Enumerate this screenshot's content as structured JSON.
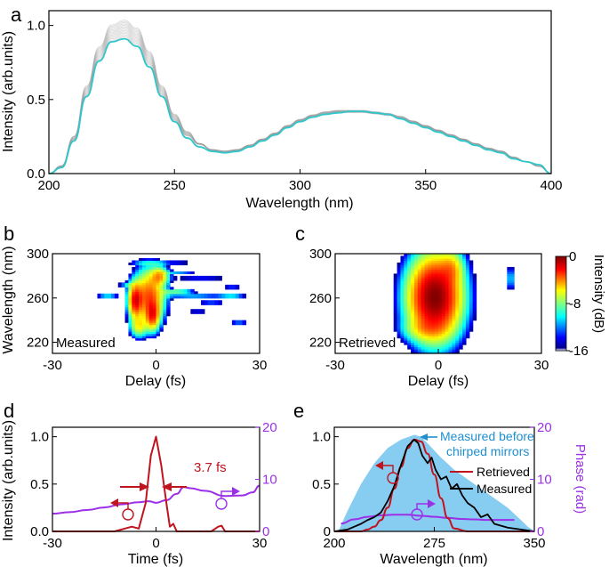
{
  "panels": {
    "a": {
      "letter": "a"
    },
    "b": {
      "letter": "b"
    },
    "c": {
      "letter": "c"
    },
    "d": {
      "letter": "d"
    },
    "e": {
      "letter": "e"
    }
  },
  "chart_data": [
    {
      "id": "a",
      "type": "line",
      "title": "",
      "xlabel": "Wavelength (nm)",
      "ylabel": "Intensity (arb.units)",
      "xlim": [
        200,
        400
      ],
      "ylim": [
        0,
        1.1
      ],
      "xticks": [
        200,
        250,
        300,
        350,
        400
      ],
      "yticks": [
        0.0,
        0.5,
        1.0
      ],
      "ytick_labels": [
        "0.0",
        "0.5",
        "1.0"
      ],
      "series": [
        {
          "name": "individual spectra",
          "color": "#9a9a9a",
          "x": [
            200,
            205,
            210,
            215,
            220,
            225,
            230,
            235,
            240,
            245,
            250,
            255,
            260,
            265,
            270,
            275,
            280,
            285,
            290,
            295,
            300,
            305,
            310,
            315,
            320,
            325,
            330,
            335,
            340,
            345,
            350,
            355,
            360,
            365,
            370,
            375,
            380,
            385,
            390,
            395,
            400
          ],
          "values": [
            0.0,
            0.05,
            0.24,
            0.56,
            0.81,
            0.95,
            0.98,
            0.93,
            0.78,
            0.56,
            0.38,
            0.27,
            0.2,
            0.16,
            0.15,
            0.16,
            0.19,
            0.23,
            0.27,
            0.32,
            0.36,
            0.39,
            0.41,
            0.42,
            0.42,
            0.42,
            0.41,
            0.4,
            0.38,
            0.35,
            0.32,
            0.29,
            0.26,
            0.23,
            0.2,
            0.17,
            0.15,
            0.11,
            0.08,
            0.05,
            0.0
          ]
        },
        {
          "name": "mean spectrum",
          "color": "#2ec7cc",
          "x": [
            200,
            205,
            210,
            215,
            220,
            225,
            230,
            235,
            240,
            245,
            250,
            255,
            260,
            265,
            270,
            275,
            280,
            285,
            290,
            295,
            300,
            305,
            310,
            315,
            320,
            325,
            330,
            335,
            340,
            345,
            350,
            355,
            360,
            365,
            370,
            375,
            380,
            385,
            390,
            395,
            400
          ],
          "values": [
            0.0,
            0.04,
            0.22,
            0.52,
            0.76,
            0.89,
            0.91,
            0.86,
            0.72,
            0.52,
            0.35,
            0.24,
            0.18,
            0.15,
            0.14,
            0.15,
            0.18,
            0.22,
            0.26,
            0.31,
            0.35,
            0.38,
            0.4,
            0.41,
            0.42,
            0.42,
            0.41,
            0.4,
            0.37,
            0.34,
            0.31,
            0.28,
            0.25,
            0.22,
            0.19,
            0.16,
            0.14,
            0.1,
            0.08,
            0.06,
            0.0
          ]
        }
      ]
    },
    {
      "id": "b",
      "type": "heatmap",
      "title": "",
      "annotation": "Measured",
      "xlabel": "Delay (fs)",
      "ylabel": "Wavelength (nm)",
      "xlim": [
        -30,
        30
      ],
      "ylim": [
        210,
        300
      ],
      "xticks": [
        -30,
        0,
        30
      ],
      "yticks": [
        220,
        260,
        300
      ],
      "blobs": [
        {
          "x": -2,
          "y": 262,
          "sx": 2.6,
          "sy": 14,
          "v": -3
        },
        {
          "x": -6,
          "y": 258,
          "sx": 1.2,
          "sy": 9,
          "v": -2
        },
        {
          "x": -1,
          "y": 245,
          "sx": 1.2,
          "sy": 8,
          "v": -3
        },
        {
          "x": -5,
          "y": 235,
          "sx": 1.5,
          "sy": 6,
          "v": -6
        },
        {
          "x": 1,
          "y": 280,
          "sx": 1.5,
          "sy": 5,
          "v": -5
        },
        {
          "x": -2,
          "y": 292,
          "sx": 4,
          "sy": 1.5,
          "v": -12
        },
        {
          "x": 6,
          "y": 266,
          "sx": 3,
          "sy": 1.4,
          "v": -8
        },
        {
          "x": 11,
          "y": 262,
          "sx": 6,
          "sy": 1.4,
          "v": -11
        },
        {
          "x": 13,
          "y": 278,
          "sx": 7,
          "sy": 1.2,
          "v": -13
        },
        {
          "x": 6,
          "y": 283,
          "sx": 4,
          "sy": 1.2,
          "v": -12
        },
        {
          "x": 22,
          "y": 262,
          "sx": 2.5,
          "sy": 1.2,
          "v": -10
        },
        {
          "x": 24,
          "y": 238,
          "sx": 2,
          "sy": 1.5,
          "v": -12
        },
        {
          "x": 7,
          "y": 292,
          "sx": 3,
          "sy": 1.2,
          "v": -14
        },
        {
          "x": 18,
          "y": 294,
          "sx": 2,
          "sy": 1.2,
          "v": -15
        },
        {
          "x": -14,
          "y": 262,
          "sx": 2,
          "sy": 1.4,
          "v": -10
        },
        {
          "x": -8,
          "y": 272,
          "sx": 2,
          "sy": 1.3,
          "v": -11
        },
        {
          "x": 16,
          "y": 256,
          "sx": 3,
          "sy": 1.2,
          "v": -12
        },
        {
          "x": 22,
          "y": 270,
          "sx": 2,
          "sy": 1.1,
          "v": -12
        },
        {
          "x": 12,
          "y": 248,
          "sx": 3,
          "sy": 1.1,
          "v": -13
        }
      ]
    },
    {
      "id": "c",
      "type": "heatmap",
      "title": "",
      "annotation": "Retrieved",
      "xlabel": "Delay (fs)",
      "ylabel": "",
      "xlim": [
        -30,
        30
      ],
      "ylim": [
        210,
        300
      ],
      "xticks": [
        -30,
        0,
        30
      ],
      "yticks": [
        220,
        260,
        300
      ],
      "blobs": [
        {
          "x": -1,
          "y": 261,
          "sx": 4.5,
          "sy": 22,
          "v": 0
        },
        {
          "x": 4,
          "y": 288,
          "sx": 2,
          "sy": 9,
          "v": -7
        },
        {
          "x": -4,
          "y": 232,
          "sx": 4,
          "sy": 6,
          "v": -9
        },
        {
          "x": 21,
          "y": 278,
          "sx": 0.9,
          "sy": 7,
          "v": -11
        }
      ],
      "colorbar": {
        "label": "Intensity (dB)",
        "ticks": [
          0,
          -8,
          -16
        ],
        "range": [
          -16,
          0
        ]
      }
    },
    {
      "id": "d",
      "type": "line",
      "title": "",
      "xlabel": "Time (fs)",
      "ylabel": "Intensity (arb.units)",
      "y2label": "Phase (rad)",
      "xlim": [
        -30,
        30
      ],
      "ylim": [
        0,
        1.1
      ],
      "y2lim": [
        0,
        20
      ],
      "xticks": [
        -30,
        0,
        30
      ],
      "yticks": [
        0.0,
        0.5,
        1.0
      ],
      "ytick_labels": [
        "0.0",
        "0.5",
        "1.0"
      ],
      "y2ticks": [
        0,
        10,
        20
      ],
      "annotations": [
        "3.7 fs"
      ],
      "series": [
        {
          "name": "intensity",
          "axis": "left",
          "color": "#c0141e",
          "x": [
            -30,
            -20,
            -12,
            -9,
            -7,
            -5,
            -3,
            -1.5,
            0,
            1.5,
            3,
            4,
            5,
            6,
            10,
            16,
            18,
            19,
            20,
            22,
            30
          ],
          "values": [
            0.0,
            0.0,
            0.0,
            0.03,
            0.05,
            0.03,
            0.3,
            0.8,
            1.0,
            0.7,
            0.3,
            0.05,
            0.08,
            0.0,
            0.0,
            0.0,
            0.05,
            0.06,
            0.0,
            0.0,
            0.0
          ]
        },
        {
          "name": "phase",
          "axis": "right",
          "color": "#9b30e8",
          "x": [
            -30,
            -25,
            -20,
            -15,
            -10,
            -5,
            -2,
            0,
            3,
            6,
            8,
            10,
            14,
            20,
            25,
            28,
            30
          ],
          "values": [
            3.4,
            3.7,
            4.1,
            4.6,
            5.2,
            5.6,
            5.8,
            5.5,
            6.0,
            7.2,
            8.5,
            8.3,
            7.8,
            6.8,
            6.9,
            7.5,
            8.8
          ]
        }
      ]
    },
    {
      "id": "e",
      "type": "line",
      "title": "",
      "xlabel": "Wavelength (nm)",
      "ylabel": "",
      "y2label": "Phase (rad)",
      "xlim": [
        200,
        350
      ],
      "ylim": [
        0,
        1.1
      ],
      "y2lim": [
        0,
        20
      ],
      "xticks": [
        200,
        275,
        350
      ],
      "yticks": [
        0.0,
        0.5,
        1.0
      ],
      "ytick_labels": [
        "0",
        "0.5",
        "1.0"
      ],
      "y2ticks": [
        0,
        10,
        20
      ],
      "annotations": [
        "Measured before",
        "chirped mirrors"
      ],
      "legend": [
        "Retrieved",
        "Measured"
      ],
      "series": [
        {
          "name": "Measured before chirped mirrors",
          "type": "area",
          "color": "#87cdf1",
          "x": [
            203,
            210,
            220,
            230,
            240,
            250,
            260,
            265,
            270,
            280,
            290,
            300,
            310,
            320,
            330,
            340,
            345,
            350
          ],
          "values": [
            0.0,
            0.22,
            0.5,
            0.72,
            0.88,
            0.97,
            1.02,
            1.0,
            0.93,
            0.78,
            0.65,
            0.55,
            0.45,
            0.35,
            0.25,
            0.12,
            0.05,
            0.0
          ]
        },
        {
          "name": "Retrieved",
          "color": "#c0141e",
          "x": [
            200,
            220,
            225,
            230,
            235,
            240,
            245,
            250,
            255,
            260,
            265,
            270,
            275,
            280,
            285,
            290,
            300,
            350
          ],
          "values": [
            0.0,
            0.0,
            0.02,
            0.05,
            0.12,
            0.25,
            0.45,
            0.68,
            0.88,
            0.97,
            0.95,
            0.82,
            0.6,
            0.35,
            0.14,
            0.03,
            0.0,
            0.0
          ]
        },
        {
          "name": "Measured",
          "color": "#000000",
          "x": [
            200,
            210,
            215,
            220,
            225,
            230,
            235,
            240,
            245,
            250,
            255,
            260,
            263,
            266,
            270,
            273,
            276,
            280,
            284,
            288,
            292,
            296,
            300,
            305,
            310,
            315,
            320,
            330,
            340,
            350
          ],
          "values": [
            0.0,
            0.02,
            0.05,
            0.08,
            0.12,
            0.15,
            0.2,
            0.32,
            0.48,
            0.7,
            0.9,
            0.97,
            0.93,
            0.8,
            0.72,
            0.78,
            0.65,
            0.55,
            0.58,
            0.45,
            0.5,
            0.38,
            0.3,
            0.25,
            0.15,
            0.18,
            0.08,
            0.04,
            0.02,
            0.0
          ]
        },
        {
          "name": "Phase",
          "axis": "right",
          "color": "#9b30e8",
          "x": [
            205,
            215,
            225,
            235,
            245,
            255,
            265,
            275,
            285,
            295,
            305,
            315,
            325,
            335
          ],
          "values": [
            1.5,
            2.3,
            2.8,
            3.1,
            3.2,
            3.2,
            3.0,
            2.8,
            2.6,
            2.4,
            2.3,
            2.2,
            2.2,
            2.2
          ]
        }
      ]
    }
  ]
}
